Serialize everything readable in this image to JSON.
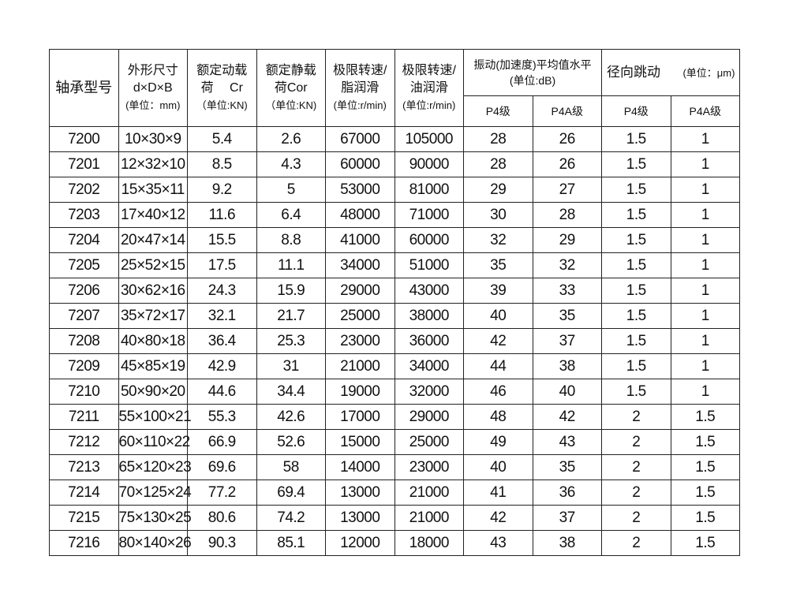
{
  "headers": {
    "model": "轴承型号",
    "size_l1": "外形尺寸",
    "size_l2": "d×D×B",
    "size_l3": "(单位：mm)",
    "cr_l1": "额定动载",
    "cr_l2": "荷　 Cr",
    "cr_l3": "（单位:KN)",
    "cor_l1": "额定静载",
    "cor_l2": "荷Cor",
    "cor_l3": "（单位:KN)",
    "grease_l1": "极限转速/",
    "grease_l2": "脂润滑",
    "grease_l3": "(单位:r/min)",
    "oil_l1": "极限转速/",
    "oil_l2": "油润滑",
    "oil_l3": "(单位:r/min)",
    "vibration": "振动(加速度)平均值水平(单位:dB)",
    "runout": "径向跳动",
    "runout_unit": "(单位：μm)",
    "p4": "P4级",
    "p4a": "P4A级",
    "p4_2": "P4级",
    "p4a_2": "P4A级"
  },
  "rows": [
    [
      "7200",
      "10×30×9",
      "5.4",
      "2.6",
      "67000",
      "105000",
      "28",
      "26",
      "1.5",
      "1"
    ],
    [
      "7201",
      "12×32×10",
      "8.5",
      "4.3",
      "60000",
      "90000",
      "28",
      "26",
      "1.5",
      "1"
    ],
    [
      "7202",
      "15×35×11",
      "9.2",
      "5",
      "53000",
      "81000",
      "29",
      "27",
      "1.5",
      "1"
    ],
    [
      "7203",
      "17×40×12",
      "11.6",
      "6.4",
      "48000",
      "71000",
      "30",
      "28",
      "1.5",
      "1"
    ],
    [
      "7204",
      "20×47×14",
      "15.5",
      "8.8",
      "41000",
      "60000",
      "32",
      "29",
      "1.5",
      "1"
    ],
    [
      "7205",
      "25×52×15",
      "17.5",
      "11.1",
      "34000",
      "51000",
      "35",
      "32",
      "1.5",
      "1"
    ],
    [
      "7206",
      "30×62×16",
      "24.3",
      "15.9",
      "29000",
      "43000",
      "39",
      "33",
      "1.5",
      "1"
    ],
    [
      "7207",
      "35×72×17",
      "32.1",
      "21.7",
      "25000",
      "38000",
      "40",
      "35",
      "1.5",
      "1"
    ],
    [
      "7208",
      "40×80×18",
      "36.4",
      "25.3",
      "23000",
      "36000",
      "42",
      "37",
      "1.5",
      "1"
    ],
    [
      "7209",
      "45×85×19",
      "42.9",
      "31",
      "21000",
      "34000",
      "44",
      "38",
      "1.5",
      "1"
    ],
    [
      "7210",
      "50×90×20",
      "44.6",
      "34.4",
      "19000",
      "32000",
      "46",
      "40",
      "1.5",
      "1"
    ],
    [
      "7211",
      "55×100×21",
      "55.3",
      "42.6",
      "17000",
      "29000",
      "48",
      "42",
      "2",
      "1.5"
    ],
    [
      "7212",
      "60×110×22",
      "66.9",
      "52.6",
      "15000",
      "25000",
      "49",
      "43",
      "2",
      "1.5"
    ],
    [
      "7213",
      "65×120×23",
      "69.6",
      "58",
      "14000",
      "23000",
      "40",
      "35",
      "2",
      "1.5"
    ],
    [
      "7214",
      "70×125×24",
      "77.2",
      "69.4",
      "13000",
      "21000",
      "41",
      "36",
      "2",
      "1.5"
    ],
    [
      "7215",
      "75×130×25",
      "80.6",
      "74.2",
      "13000",
      "21000",
      "42",
      "37",
      "2",
      "1.5"
    ],
    [
      "7216",
      "80×140×26",
      "90.3",
      "85.1",
      "12000",
      "18000",
      "43",
      "38",
      "2",
      "1.5"
    ]
  ],
  "column_names": [
    "model",
    "size",
    "dynamic-load",
    "static-load",
    "speed-grease",
    "speed-oil",
    "vibration-p4",
    "vibration-p4a",
    "runout-p4",
    "runout-p4a"
  ]
}
